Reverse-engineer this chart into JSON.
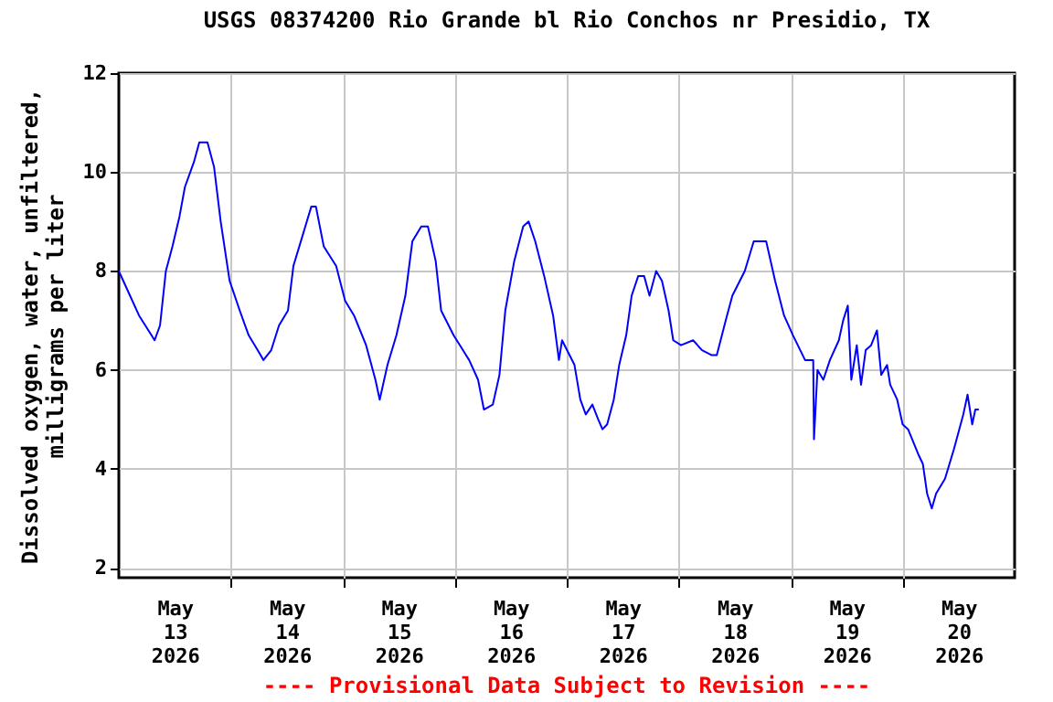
{
  "chart_data": {
    "type": "line",
    "title": "USGS 08374200 Rio Grande bl Rio Conchos nr Presidio, TX",
    "ylabel": "Dissolved oxygen, water, unfiltered, milligrams per liter",
    "annotations": [
      "---- Provisional Data Subject to Revision ----"
    ],
    "x": [
      "2026-05-13T00:00",
      "2026-05-13T02:24",
      "2026-05-13T04:20",
      "2026-05-13T07:00",
      "2026-05-13T07:40",
      "2026-05-13T08:50",
      "2026-05-13T10:05",
      "2026-05-13T11:30",
      "2026-05-13T13:00",
      "2026-05-13T14:10",
      "2026-05-13T16:05",
      "2026-05-13T17:15",
      "2026-05-13T19:00",
      "2026-05-13T20:25",
      "2026-05-13T21:50",
      "2026-05-13T23:45",
      "2026-05-14T01:55",
      "2026-05-14T03:50",
      "2026-05-14T05:45",
      "2026-05-14T07:00",
      "2026-05-14T08:40",
      "2026-05-14T10:20",
      "2026-05-14T12:15",
      "2026-05-14T13:25",
      "2026-05-14T15:20",
      "2026-05-14T17:15",
      "2026-05-14T18:15",
      "2026-05-14T19:55",
      "2026-05-14T22:35",
      "2026-05-15T00:30",
      "2026-05-15T02:25",
      "2026-05-15T05:00",
      "2026-05-15T07:00",
      "2026-05-15T07:55",
      "2026-05-15T09:35",
      "2026-05-15T11:30",
      "2026-05-15T13:25",
      "2026-05-15T14:55",
      "2026-05-15T16:50",
      "2026-05-15T18:15",
      "2026-05-15T19:55",
      "2026-05-15T21:05",
      "2026-05-15T23:45",
      "2026-05-16T03:05",
      "2026-05-16T05:00",
      "2026-05-16T06:15",
      "2026-05-16T08:10",
      "2026-05-16T09:35",
      "2026-05-16T10:50",
      "2026-05-16T12:45",
      "2026-05-16T14:40",
      "2026-05-16T15:50",
      "2026-05-16T17:15",
      "2026-05-16T19:10",
      "2026-05-16T21:05",
      "2026-05-16T22:20",
      "2026-05-16T23:00",
      "2026-05-17T01:40",
      "2026-05-17T02:55",
      "2026-05-17T04:05",
      "2026-05-17T05:30",
      "2026-05-17T06:45",
      "2026-05-17T07:40",
      "2026-05-17T08:40",
      "2026-05-17T10:05",
      "2026-05-17T11:15",
      "2026-05-17T12:45",
      "2026-05-17T13:55",
      "2026-05-17T15:20",
      "2026-05-17T16:35",
      "2026-05-17T17:45",
      "2026-05-17T19:10",
      "2026-05-17T20:25",
      "2026-05-17T21:50",
      "2026-05-17T22:50",
      "2026-05-18T00:30",
      "2026-05-18T03:05",
      "2026-05-18T05:00",
      "2026-05-18T07:00",
      "2026-05-18T08:10",
      "2026-05-18T10:05",
      "2026-05-18T11:30",
      "2026-05-18T14:10",
      "2026-05-18T16:05",
      "2026-05-18T16:50",
      "2026-05-18T18:45",
      "2026-05-18T20:40",
      "2026-05-18T22:35",
      "2026-05-19T00:30",
      "2026-05-19T03:05",
      "2026-05-19T04:50",
      "2026-05-19T05:00",
      "2026-05-19T05:45",
      "2026-05-19T07:00",
      "2026-05-19T08:25",
      "2026-05-19T10:20",
      "2026-05-19T11:15",
      "2026-05-19T12:15",
      "2026-05-19T13:00",
      "2026-05-19T14:10",
      "2026-05-19T15:05",
      "2026-05-19T16:05",
      "2026-05-19T17:15",
      "2026-05-19T18:30",
      "2026-05-19T19:25",
      "2026-05-19T20:40",
      "2026-05-19T21:20",
      "2026-05-19T22:50",
      "2026-05-20T00:00",
      "2026-05-20T01:10",
      "2026-05-20T03:20",
      "2026-05-20T04:20",
      "2026-05-20T05:15",
      "2026-05-20T06:15",
      "2026-05-20T07:10",
      "2026-05-20T09:05",
      "2026-05-20T11:00",
      "2026-05-20T13:00",
      "2026-05-20T13:55",
      "2026-05-20T14:55",
      "2026-05-20T15:35",
      "2026-05-20T16:20"
    ],
    "series": [
      {
        "color": "#0000ff",
        "values": [
          8.0,
          7.5,
          7.1,
          6.7,
          6.6,
          6.9,
          8.0,
          8.5,
          9.1,
          9.7,
          10.2,
          10.6,
          10.6,
          10.1,
          9.0,
          7.8,
          7.2,
          6.7,
          6.4,
          6.2,
          6.4,
          6.9,
          7.2,
          8.1,
          8.7,
          9.3,
          9.3,
          8.5,
          8.1,
          7.4,
          7.1,
          6.5,
          5.8,
          5.4,
          6.1,
          6.7,
          7.5,
          8.6,
          8.9,
          8.9,
          8.2,
          7.2,
          6.7,
          6.2,
          5.8,
          5.2,
          5.3,
          5.9,
          7.2,
          8.2,
          8.9,
          9.0,
          8.6,
          7.9,
          7.1,
          6.2,
          6.6,
          6.1,
          5.4,
          5.1,
          5.3,
          5.0,
          4.8,
          4.9,
          5.4,
          6.1,
          6.7,
          7.5,
          7.9,
          7.9,
          7.5,
          8.0,
          7.8,
          7.2,
          6.6,
          6.5,
          6.6,
          6.4,
          6.3,
          6.3,
          7.0,
          7.5,
          8.0,
          8.6,
          8.6,
          8.6,
          7.8,
          7.1,
          6.7,
          6.2,
          6.2,
          4.6,
          6.0,
          5.8,
          6.2,
          6.6,
          7.0,
          7.3,
          5.8,
          6.5,
          5.7,
          6.4,
          6.5,
          6.8,
          5.9,
          6.1,
          5.7,
          5.4,
          4.9,
          4.8,
          4.3,
          4.1,
          3.5,
          3.2,
          3.5,
          3.8,
          4.4,
          5.1,
          5.5,
          4.9,
          5.2,
          5.2
        ]
      }
    ],
    "xlim": [
      "2026-05-13T00:00",
      "2026-05-21T00:00"
    ],
    "xticks": [
      {
        "value": "2026-05-13T12:00",
        "label": "May 13 2026"
      },
      {
        "value": "2026-05-14T12:00",
        "label": "May 14 2026"
      },
      {
        "value": "2026-05-15T12:00",
        "label": "May 15 2026"
      },
      {
        "value": "2026-05-16T12:00",
        "label": "May 16 2026"
      },
      {
        "value": "2026-05-17T12:00",
        "label": "May 17 2026"
      },
      {
        "value": "2026-05-18T12:00",
        "label": "May 18 2026"
      },
      {
        "value": "2026-05-19T12:00",
        "label": "May 19 2026"
      },
      {
        "value": "2026-05-20T12:00",
        "label": "May 20 2026"
      },
      {
        "value": "2026-05-14T00:00",
        "label": null
      },
      {
        "value": "2026-05-15T00:00",
        "label": null
      },
      {
        "value": "2026-05-16T00:00",
        "label": null
      },
      {
        "value": "2026-05-17T00:00",
        "label": null
      },
      {
        "value": "2026-05-18T00:00",
        "label": null
      },
      {
        "value": "2026-05-19T00:00",
        "label": null
      },
      {
        "value": "2026-05-20T00:00",
        "label": null
      }
    ],
    "ylim": [
      1.8,
      12
    ],
    "yticks": [
      2,
      4,
      6,
      8,
      10,
      12
    ],
    "grid": true,
    "line_style": "solid",
    "marker": "none"
  }
}
